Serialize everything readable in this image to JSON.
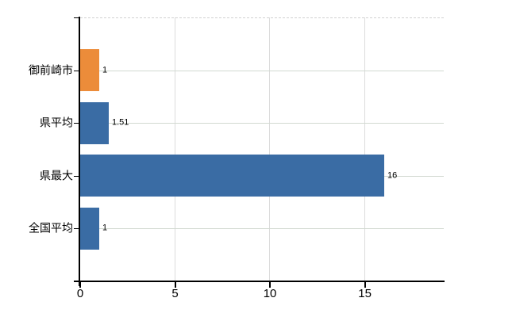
{
  "chart_data": {
    "type": "bar",
    "orientation": "horizontal",
    "title": "",
    "categories": [
      "御前崎市",
      "県平均",
      "県最大",
      "全国平均"
    ],
    "values": [
      1,
      1.51,
      16,
      1
    ],
    "value_labels": [
      "1",
      "1.51",
      "16",
      "1"
    ],
    "bar_colors": [
      "#ec8c3a",
      "#3a6ca4",
      "#3a6ca4",
      "#3a6ca4"
    ],
    "xticks": [
      0,
      5,
      10,
      15
    ],
    "xtick_labels": [
      "0",
      "5",
      "10",
      "15"
    ],
    "xlim": [
      0,
      19.2
    ],
    "grid": "on",
    "legend": "none",
    "axis_color": "#000000",
    "h_gridline_color": "#d2d9d1",
    "v_gridline_color": "#dcdcdc",
    "top_border_color": "#d0d0d0"
  }
}
